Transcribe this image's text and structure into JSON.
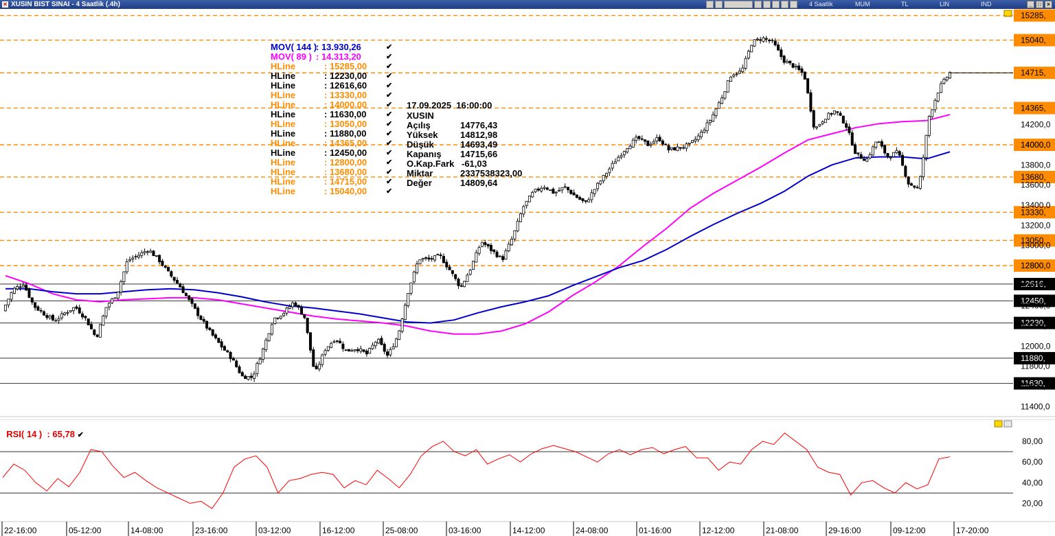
{
  "window": {
    "title": "XUSIN BIST SINAI - 4 Saatlik (.4h)",
    "period_label": "4 Saatlik",
    "chart_modes": [
      "MUM",
      "TL",
      "LIN",
      "IND"
    ]
  },
  "legend": {
    "items": [
      {
        "name": "MOV( 144 )",
        "value": ": 13.930,26",
        "color": "#0000cc"
      },
      {
        "name": "MOV( 89 )",
        "value": ": 14.313,20",
        "color": "#ff00ff"
      },
      {
        "name": "HLine",
        "value": ": 15285,00",
        "color": "#ff8c00"
      },
      {
        "name": "HLine",
        "value": ": 12230,00",
        "color": "#000000"
      },
      {
        "name": "HLine",
        "value": ": 12616,60",
        "color": "#000000"
      },
      {
        "name": "HLine",
        "value": ": 13330,00",
        "color": "#ff8c00"
      },
      {
        "name": "HLine",
        "value": ": 14000,00",
        "color": "#ff8c00"
      },
      {
        "name": "HLine",
        "value": ": 11630,00",
        "color": "#000000"
      },
      {
        "name": "HLine",
        "value": ": 13050,00",
        "color": "#ff8c00"
      },
      {
        "name": "HLine",
        "value": ": 11880,00",
        "color": "#000000"
      },
      {
        "name": "HLine",
        "value": ": 14365,00",
        "color": "#ff8c00"
      },
      {
        "name": "HLine",
        "value": ": 12450,00",
        "color": "#000000"
      },
      {
        "name": "HLine",
        "value": ": 12800,00",
        "color": "#ff8c00"
      },
      {
        "name": "HLine",
        "value": ": 13680,00",
        "color": "#ff8c00"
      },
      {
        "name": "HLine",
        "value": ": 14715,00",
        "color": "#ff8c00"
      },
      {
        "name": "HLine",
        "value": ": 15040,00",
        "color": "#ff8c00"
      }
    ]
  },
  "info_panel": {
    "datetime": "17.09.2025  16:00:00",
    "symbol": "XUSIN",
    "rows": [
      {
        "label": "Açılış",
        "value": "14776,43"
      },
      {
        "label": "Yüksek",
        "value": "14812,98"
      },
      {
        "label": "Düşük",
        "value": "14693,49"
      },
      {
        "label": "Kapanış",
        "value": "14715,66"
      },
      {
        "label": "O.Kap.Fark",
        "value": "-61,03"
      },
      {
        "label": "Miktar",
        "value": "2337538323,00"
      },
      {
        "label": "Değer",
        "value": "14809,64"
      }
    ]
  },
  "rsi": {
    "label": "RSI( 14 )",
    "value": ": 65,78",
    "color": "#ff0000"
  },
  "colors": {
    "orange": "#ff8c00",
    "ma144": "#0000cc",
    "ma89": "#ff00ff",
    "rsi": "#ff0000",
    "tag_black": "#000000"
  },
  "chart_data": {
    "type": "candlestick",
    "instrument": "XUSIN",
    "price_axis": {
      "range": [
        11300,
        15350
      ],
      "ticks": [
        11400,
        11600,
        11800,
        12000,
        12200,
        12400,
        12600,
        12800,
        13000,
        13200,
        13400,
        13600,
        13800,
        14000,
        14200
      ],
      "tick_labels": [
        "11400,0",
        "11600,0",
        "11800,0",
        "12000,0",
        "12200,0",
        "12400,0",
        "12600,0",
        "12800,0",
        "13000,0",
        "13200,0",
        "13400,0",
        "13600,0",
        "13800,0",
        "14000,0",
        "14200,0"
      ]
    },
    "hlines": [
      {
        "value": 15285,
        "label": "15285,",
        "style": "orange-dashed"
      },
      {
        "value": 15040,
        "label": "15040,",
        "style": "orange-dashed"
      },
      {
        "value": 14715,
        "label": "14715,",
        "style": "orange-dashed"
      },
      {
        "value": 14365,
        "label": "14365,",
        "style": "orange-dashed"
      },
      {
        "value": 14000,
        "label": "14000,",
        "style": "orange-dashed"
      },
      {
        "value": 13680,
        "label": "13680,",
        "style": "orange-dashed"
      },
      {
        "value": 13330,
        "label": "13330,",
        "style": "orange-dashed"
      },
      {
        "value": 13050,
        "label": "13050,",
        "style": "orange-dashed"
      },
      {
        "value": 12800,
        "label": "12800,",
        "style": "orange-dashed"
      },
      {
        "value": 12616.6,
        "label": "12616,",
        "style": "black-solid"
      },
      {
        "value": 12450,
        "label": "12450,",
        "style": "black-solid"
      },
      {
        "value": 12230,
        "label": "12230,",
        "style": "black-solid"
      },
      {
        "value": 11880,
        "label": "11880,",
        "style": "black-solid"
      },
      {
        "value": 11630,
        "label": "11630,",
        "style": "black-solid"
      }
    ],
    "x_labels": [
      "22-16:00",
      "05-12:00",
      "14-08:00",
      "23-16:00",
      "03-12:00",
      "16-12:00",
      "25-08:00",
      "03-16:00",
      "14-12:00",
      "24-08:00",
      "01-16:00",
      "12-12:00",
      "21-08:00",
      "29-16:00",
      "09-12:00",
      "17-20:00"
    ],
    "price_path": [
      12350,
      12560,
      12620,
      12400,
      12320,
      12250,
      12330,
      12390,
      12270,
      12080,
      12400,
      12520,
      12850,
      12900,
      12960,
      12860,
      12720,
      12600,
      12440,
      12280,
      12130,
      12000,
      11880,
      11700,
      11690,
      11960,
      12270,
      12330,
      12440,
      12290,
      11720,
      11970,
      12080,
      11950,
      11980,
      11920,
      12070,
      11900,
      12110,
      12560,
      12870,
      12860,
      12900,
      12750,
      12580,
      12780,
      13040,
      12950,
      12860,
      13080,
      13380,
      13530,
      13590,
      13520,
      13580,
      13490,
      13420,
      13580,
      13720,
      13860,
      13980,
      14070,
      14000,
      14070,
      13950,
      13970,
      14000,
      14100,
      14250,
      14450,
      14700,
      14730,
      15020,
      15060,
      15020,
      14840,
      14780,
      14700,
      14150,
      14270,
      14340,
      14200,
      13900,
      13850,
      14050,
      13880,
      13930,
      13620,
      13560,
      14280,
      14570,
      14715
    ],
    "ma89": [
      12700,
      12620,
      12520,
      12460,
      12440,
      12460,
      12470,
      12480,
      12480,
      12460,
      12420,
      12380,
      12340,
      12300,
      12270,
      12250,
      12230,
      12200,
      12150,
      12120,
      12120,
      12150,
      12220,
      12340,
      12500,
      12640,
      12800,
      12990,
      13170,
      13370,
      13520,
      13650,
      13780,
      13920,
      14050,
      14110,
      14170,
      14210,
      14230,
      14240,
      14300
    ],
    "ma144": [
      12570,
      12570,
      12540,
      12520,
      12520,
      12540,
      12560,
      12570,
      12560,
      12530,
      12490,
      12440,
      12400,
      12380,
      12350,
      12320,
      12280,
      12240,
      12230,
      12260,
      12330,
      12390,
      12440,
      12500,
      12600,
      12690,
      12780,
      12850,
      12960,
      13090,
      13210,
      13320,
      13420,
      13540,
      13690,
      13800,
      13870,
      13880,
      13880,
      13860,
      13930
    ]
  },
  "rsi_data": {
    "type": "line",
    "range": [
      5,
      92
    ],
    "ticks": [
      20,
      40,
      60,
      80
    ],
    "tick_labels": [
      "20,00",
      "40,00",
      "60,00",
      "80,00"
    ],
    "ref_levels": [
      30,
      70
    ],
    "values": [
      45,
      58,
      52,
      40,
      32,
      44,
      36,
      50,
      72,
      70,
      56,
      45,
      50,
      42,
      35,
      30,
      25,
      20,
      22,
      15,
      30,
      55,
      63,
      66,
      55,
      30,
      42,
      44,
      48,
      50,
      48,
      35,
      42,
      38,
      52,
      44,
      35,
      48,
      66,
      75,
      80,
      70,
      66,
      72,
      58,
      63,
      67,
      60,
      68,
      73,
      76,
      73,
      70,
      65,
      60,
      68,
      72,
      67,
      72,
      74,
      68,
      72,
      75,
      64,
      64,
      52,
      60,
      58,
      72,
      80,
      77,
      88,
      80,
      72,
      55,
      50,
      48,
      28,
      40,
      42,
      35,
      30,
      40,
      34,
      38,
      63,
      65
    ]
  }
}
